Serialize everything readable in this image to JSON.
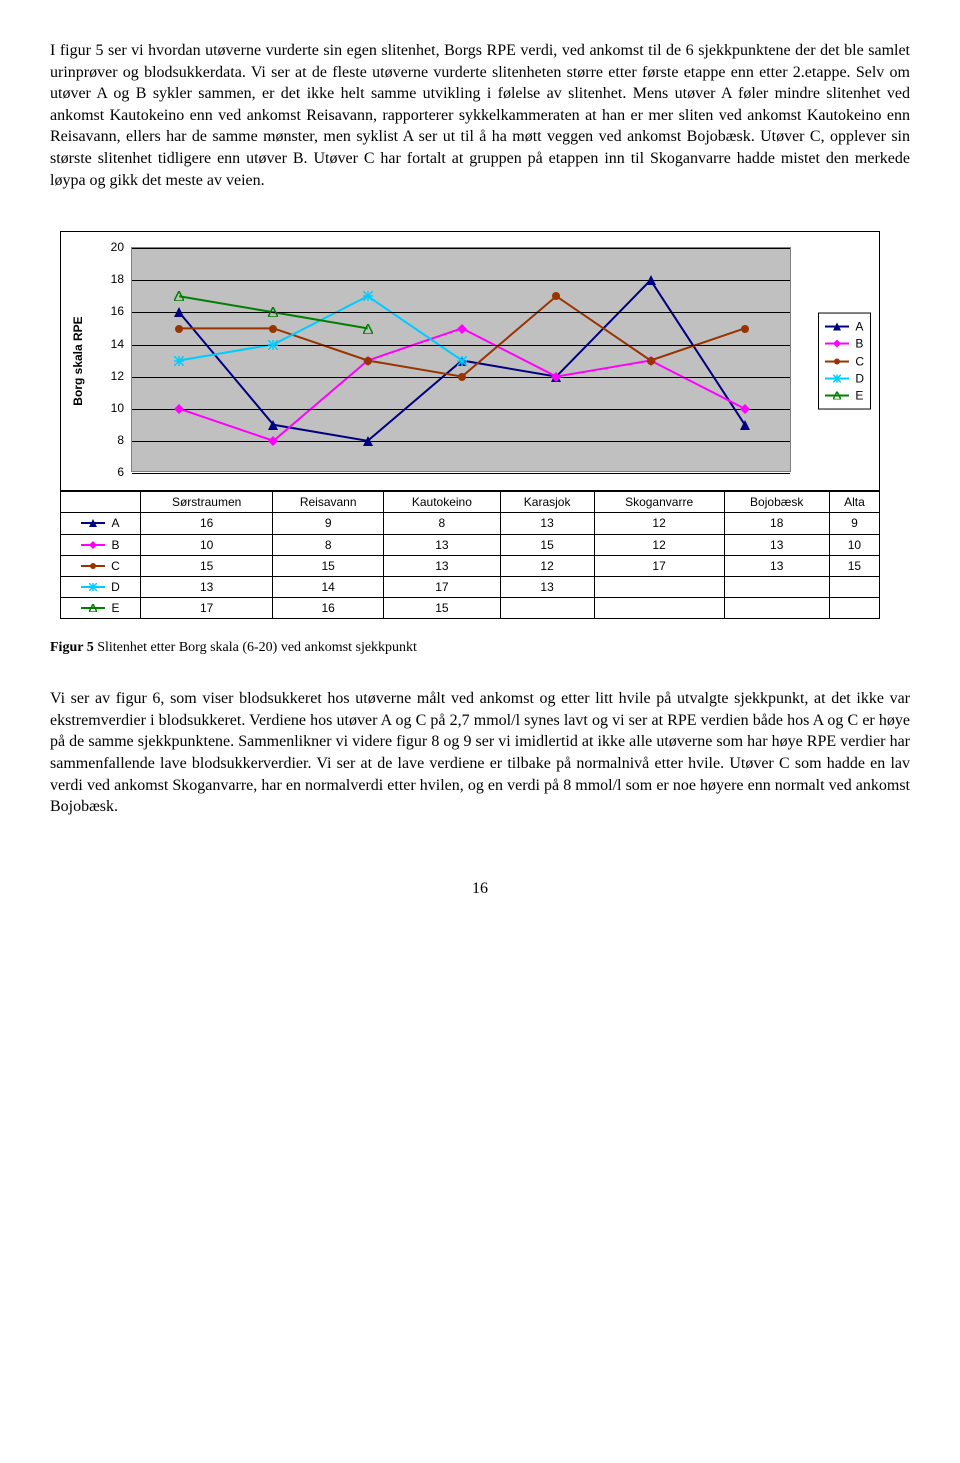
{
  "paragraph_top": "I figur 5 ser vi hvordan utøverne vurderte sin egen slitenhet, Borgs RPE verdi, ved ankomst til de 6 sjekkpunktene der det ble samlet urinprøver og blodsukkerdata.  Vi ser at de fleste utøverne vurderte slitenheten større etter første etappe enn etter 2.etappe. Selv om utøver A og B sykler sammen, er det ikke helt samme utvikling i følelse av slitenhet. Mens utøver A føler mindre slitenhet ved ankomst Kautokeino enn ved ankomst Reisavann, rapporterer sykkelkammeraten at han er mer sliten ved ankomst Kautokeino enn Reisavann, ellers har de samme mønster, men syklist A ser ut til å ha møtt veggen ved ankomst Bojobæsk.  Utøver C, opplever sin største slitenhet tidligere enn utøver B. Utøver C har fortalt at gruppen på etappen inn til Skoganvarre hadde mistet den merkede løypa og gikk det meste av veien.",
  "paragraph_bottom": "Vi ser av figur 6, som viser blodsukkeret hos utøverne målt ved ankomst og etter litt hvile på utvalgte sjekkpunkt, at det ikke var ekstremverdier i blodsukkeret. Verdiene hos utøver A og C på 2,7 mmol/l synes lavt og vi ser at RPE verdien både hos A og C er høye på de samme sjekkpunktene. Sammenlikner vi videre figur 8 og 9 ser vi imidlertid at ikke alle utøverne som har høye RPE verdier har sammenfallende lave blodsukkerverdier. Vi ser at de lave verdiene er tilbake på normalnivå etter hvile. Utøver C som hadde en lav verdi ved ankomst Skoganvarre, har en normalverdi etter hvilen,  og  en verdi på 8 mmol/l som er noe høyere enn normalt ved ankomst Bojobæsk.",
  "caption_bold": "Figur 5",
  "caption_rest": " Slitenhet etter Borg skala (6-20) ved ankomst sjekkpunkt",
  "page_number": "16",
  "chart": {
    "ylabel": "Borg skala RPE",
    "ymin": 6,
    "ymax": 20,
    "yticks": [
      6,
      8,
      10,
      12,
      14,
      16,
      18,
      20
    ],
    "categories": [
      "Sørstraumen",
      "Reisavann",
      "Kautokeino",
      "Karasjok",
      "Skoganvarre",
      "Bojobæsk",
      "Alta"
    ],
    "plot_bg": "#c0c0c0",
    "grid_color": "#000000",
    "series": [
      {
        "name": "A",
        "color": "#000080",
        "marker": "triangle",
        "values": [
          16,
          9,
          8,
          13,
          12,
          18,
          9
        ]
      },
      {
        "name": "B",
        "color": "#ff00ff",
        "marker": "diamond",
        "values": [
          10,
          8,
          13,
          15,
          12,
          13,
          10
        ]
      },
      {
        "name": "C",
        "color": "#993300",
        "marker": "circle",
        "values": [
          15,
          15,
          13,
          12,
          17,
          13,
          15
        ]
      },
      {
        "name": "D",
        "color": "#00ccff",
        "marker": "star",
        "values": [
          13,
          14,
          17,
          13,
          null,
          null,
          null
        ]
      },
      {
        "name": "E",
        "color": "#008000",
        "marker": "tri-open",
        "values": [
          17,
          16,
          15,
          null,
          null,
          null,
          null
        ]
      }
    ]
  }
}
